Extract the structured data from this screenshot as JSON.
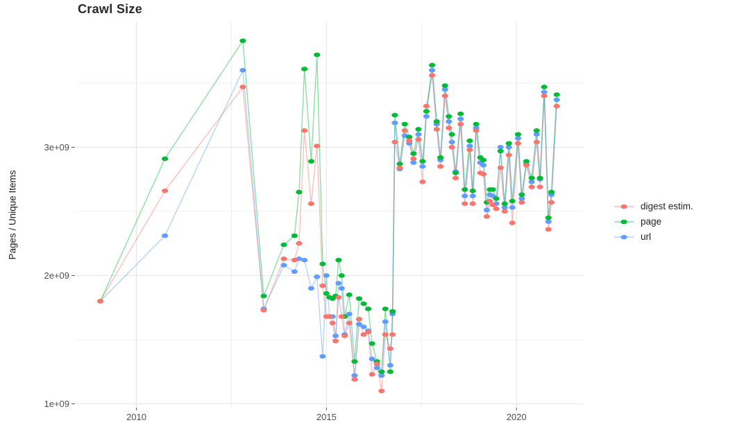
{
  "title": "Crawl Size",
  "axes": {
    "y_label": "Pages / Unique Items",
    "y_unit": "billions (value × 1e9)",
    "y_ticks": [
      {
        "value": 1.0,
        "label": "1e+09"
      },
      {
        "value": 2.0,
        "label": "2e+09"
      },
      {
        "value": 3.0,
        "label": "3e+09"
      }
    ],
    "y_minor": [
      1.5,
      2.5,
      3.5
    ],
    "x_ticks": [
      {
        "value": 2010,
        "label": "2010"
      },
      {
        "value": 2015,
        "label": "2015"
      },
      {
        "value": 2020,
        "label": "2020"
      }
    ],
    "x_minor": [
      2012.5,
      2017.5
    ],
    "x_range": [
      2008.42,
      2021.75
    ],
    "y_range": [
      0.97,
      3.98
    ],
    "grid": true
  },
  "colors": {
    "digest": "#F8766D",
    "page": "#00BA38",
    "url": "#619CFF",
    "grid_major": "#E4E4E4",
    "grid_minor": "#F0F0F0",
    "tick_mark": "#555555",
    "tick_label": "#4d4d4d",
    "background": "#ffffff"
  },
  "legend": {
    "position": "right",
    "items": [
      "digest estim.",
      "page",
      "url"
    ]
  },
  "chart_data": {
    "type": "line",
    "title": "Crawl Size",
    "xlabel": "",
    "ylabel": "Pages / Unique Items",
    "y_unit_multiplier": 1000000000.0,
    "x": [
      2009.05,
      2010.75,
      2012.8,
      2013.35,
      2013.88,
      2014.16,
      2014.28,
      2014.42,
      2014.6,
      2014.75,
      2014.9,
      2015.0,
      2015.08,
      2015.16,
      2015.24,
      2015.32,
      2015.4,
      2015.48,
      2015.6,
      2015.74,
      2015.86,
      2015.98,
      2016.1,
      2016.2,
      2016.33,
      2016.45,
      2016.55,
      2016.68,
      2016.74,
      2016.8,
      2016.93,
      2017.06,
      2017.18,
      2017.29,
      2017.42,
      2017.53,
      2017.63,
      2017.78,
      2017.9,
      2018.0,
      2018.12,
      2018.22,
      2018.3,
      2018.4,
      2018.53,
      2018.64,
      2018.77,
      2018.85,
      2018.94,
      2019.05,
      2019.13,
      2019.22,
      2019.3,
      2019.38,
      2019.47,
      2019.58,
      2019.69,
      2019.8,
      2019.89,
      2020.04,
      2020.14,
      2020.26,
      2020.4,
      2020.53,
      2020.62,
      2020.73,
      2020.84,
      2020.92,
      2021.06
    ],
    "series": [
      {
        "name": "digest estim.",
        "color": "#F8766D",
        "values": [
          1.8,
          2.66,
          3.47,
          1.73,
          2.13,
          2.12,
          2.25,
          3.13,
          2.56,
          3.01,
          1.92,
          1.68,
          1.68,
          1.63,
          1.49,
          1.83,
          1.68,
          1.53,
          1.63,
          1.19,
          1.66,
          1.54,
          1.56,
          1.23,
          1.31,
          1.1,
          1.54,
          1.43,
          1.54,
          3.04,
          2.84,
          3.13,
          3.05,
          2.91,
          3.06,
          2.73,
          3.32,
          3.56,
          3.14,
          2.85,
          3.4,
          3.15,
          3.0,
          2.76,
          3.18,
          2.56,
          2.98,
          2.56,
          3.13,
          2.8,
          2.79,
          2.46,
          2.58,
          2.55,
          2.52,
          2.84,
          2.5,
          2.94,
          2.41,
          3.03,
          2.57,
          2.86,
          2.69,
          3.04,
          2.69,
          3.4,
          2.36,
          2.57,
          3.32
        ]
      },
      {
        "name": "page",
        "color": "#00BA38",
        "values": [
          1.8,
          2.91,
          3.83,
          1.84,
          2.24,
          2.31,
          2.65,
          3.61,
          2.89,
          3.72,
          2.09,
          1.86,
          1.83,
          1.82,
          1.84,
          2.12,
          2.0,
          1.68,
          1.85,
          1.33,
          1.82,
          1.78,
          1.74,
          1.47,
          1.33,
          1.25,
          1.74,
          1.25,
          1.72,
          3.25,
          2.87,
          3.18,
          3.08,
          2.95,
          3.14,
          2.89,
          3.28,
          3.64,
          3.2,
          2.92,
          3.48,
          3.24,
          3.1,
          2.8,
          3.26,
          2.67,
          3.05,
          2.66,
          3.18,
          2.92,
          2.9,
          2.57,
          2.67,
          2.67,
          2.6,
          2.97,
          2.56,
          3.03,
          2.58,
          3.1,
          2.63,
          2.89,
          2.76,
          3.13,
          2.76,
          3.47,
          2.45,
          2.65,
          3.41
        ]
      },
      {
        "name": "url",
        "color": "#619CFF",
        "values": [
          1.8,
          2.31,
          3.6,
          1.74,
          2.08,
          2.03,
          2.13,
          2.12,
          1.9,
          1.99,
          1.37,
          2.0,
          1.68,
          1.68,
          1.53,
          1.94,
          1.9,
          1.54,
          1.7,
          1.22,
          1.62,
          1.6,
          1.57,
          1.35,
          1.28,
          1.22,
          1.64,
          1.3,
          1.7,
          3.19,
          2.83,
          3.09,
          3.03,
          2.88,
          3.1,
          2.85,
          3.24,
          3.6,
          3.18,
          2.9,
          3.45,
          3.2,
          3.04,
          2.81,
          3.22,
          2.62,
          3.01,
          2.62,
          3.15,
          2.88,
          2.86,
          2.51,
          2.63,
          2.62,
          2.56,
          3.0,
          2.53,
          3.0,
          2.53,
          3.07,
          2.6,
          2.87,
          2.73,
          3.1,
          2.75,
          3.43,
          2.42,
          2.63,
          3.37
        ]
      }
    ],
    "legend_position": "right"
  }
}
